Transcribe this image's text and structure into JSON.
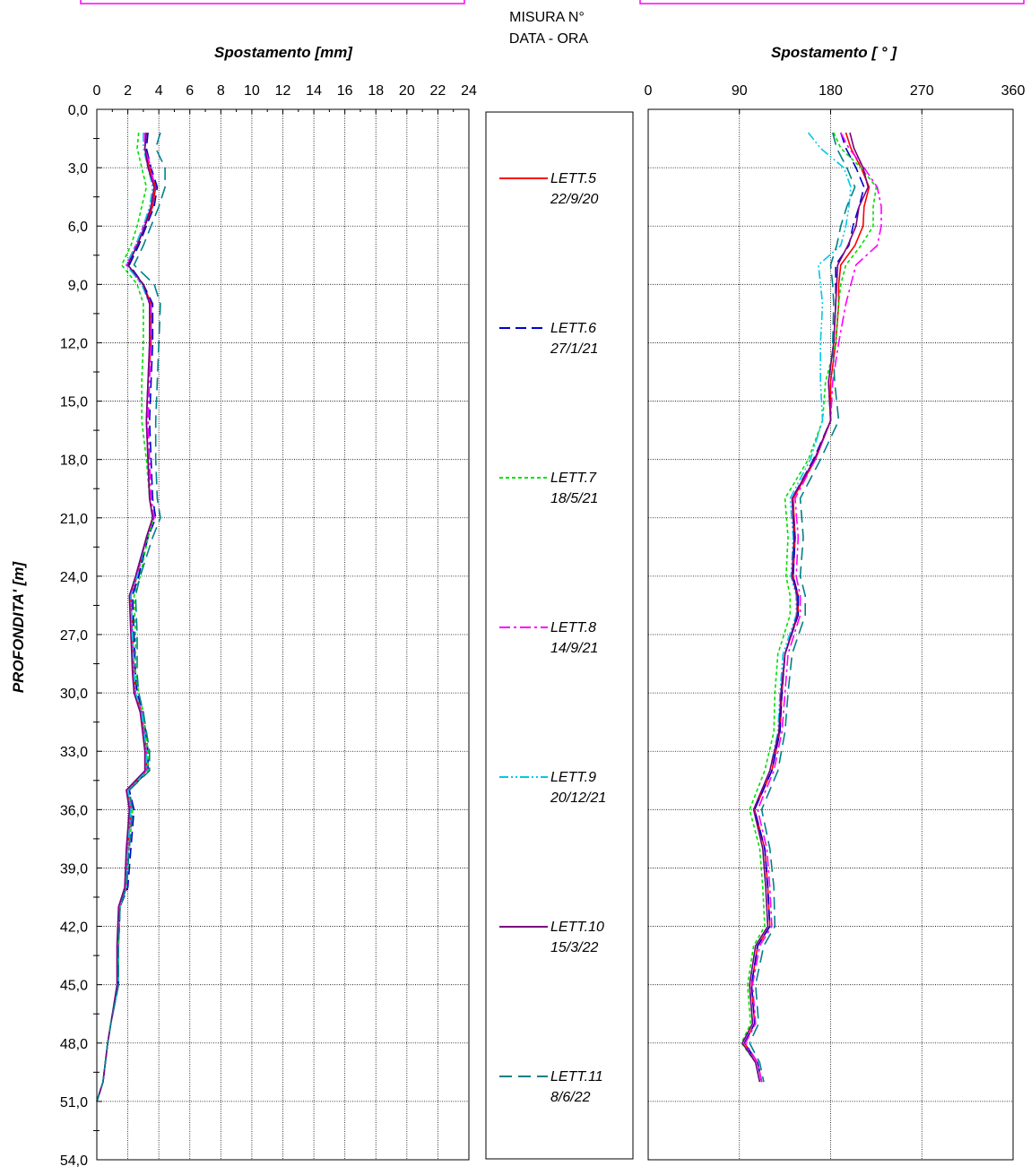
{
  "header": {
    "measure_label": "MISURA N°",
    "date_label": "DATA - ORA"
  },
  "chart_data": [
    {
      "type": "line",
      "title": "",
      "xlabel": "Spostamento [mm]",
      "ylabel": "PROFONDITA' [m]",
      "xlim": [
        0,
        24
      ],
      "ylim": [
        0,
        54
      ],
      "y_inverted": true,
      "xticks": [
        "0",
        "2",
        "4",
        "6",
        "8",
        "10",
        "12",
        "14",
        "16",
        "18",
        "20",
        "22",
        "24"
      ],
      "yticks": [
        "0,0",
        "3,0",
        "6,0",
        "9,0",
        "12,0",
        "15,0",
        "18,0",
        "21,0",
        "24,0",
        "27,0",
        "30,0",
        "33,0",
        "36,0",
        "39,0",
        "42,0",
        "45,0",
        "48,0",
        "51,0",
        "54,0"
      ],
      "grid": true,
      "depth": [
        1.2,
        2,
        3,
        4,
        5,
        6,
        7,
        8,
        9,
        10,
        12,
        14,
        16,
        18,
        20,
        21,
        22,
        24,
        25,
        27,
        29,
        30,
        31,
        33,
        34,
        35,
        36,
        38,
        40,
        41,
        43,
        45,
        47,
        48,
        50,
        51
      ],
      "series": [
        {
          "name": "LETT.5",
          "values": [
            3.2,
            3.1,
            3.4,
            3.8,
            3.6,
            3.1,
            2.6,
            2.0,
            3.0,
            3.5,
            3.5,
            3.3,
            3.2,
            3.3,
            3.4,
            3.6,
            3.2,
            2.6,
            2.2,
            2.3,
            2.4,
            2.5,
            2.9,
            3.2,
            3.2,
            2.0,
            2.2,
            2.0,
            1.9,
            1.5,
            1.4,
            1.4,
            0.9,
            0.7,
            0.4,
            0.0
          ]
        },
        {
          "name": "LETT.6",
          "values": [
            3.3,
            3.2,
            3.5,
            3.9,
            3.7,
            3.2,
            2.7,
            2.1,
            3.0,
            3.6,
            3.6,
            3.5,
            3.4,
            3.5,
            3.6,
            3.8,
            3.3,
            2.7,
            2.3,
            2.4,
            2.5,
            2.6,
            3.0,
            3.3,
            3.3,
            2.1,
            2.4,
            2.2,
            2.0,
            1.5,
            1.4,
            1.4,
            0.9,
            0.7,
            0.4,
            0.0
          ]
        },
        {
          "name": "LETT.7",
          "values": [
            2.7,
            2.6,
            2.9,
            3.2,
            2.9,
            2.6,
            2.2,
            1.6,
            2.6,
            3.0,
            3.0,
            2.9,
            2.9,
            3.2,
            3.4,
            3.7,
            3.3,
            2.8,
            2.4,
            2.5,
            2.5,
            2.7,
            3.0,
            3.3,
            3.3,
            2.0,
            2.3,
            2.1,
            1.9,
            1.5,
            1.4,
            1.4,
            0.9,
            0.7,
            0.4,
            0.0
          ]
        },
        {
          "name": "LETT.8",
          "values": [
            3.1,
            3.1,
            3.5,
            3.7,
            3.5,
            3.0,
            2.5,
            1.9,
            2.9,
            3.5,
            3.5,
            3.4,
            3.3,
            3.4,
            3.5,
            3.7,
            3.2,
            2.6,
            2.2,
            2.3,
            2.4,
            2.5,
            2.9,
            3.2,
            3.2,
            2.0,
            2.2,
            2.0,
            1.9,
            1.5,
            1.4,
            1.4,
            0.9,
            0.7,
            0.4,
            0.0
          ]
        },
        {
          "name": "LETT.9",
          "values": [
            3.0,
            3.0,
            3.3,
            3.6,
            3.4,
            3.0,
            2.5,
            1.9,
            2.9,
            3.4,
            3.4,
            3.3,
            3.2,
            3.3,
            3.4,
            3.6,
            3.2,
            2.6,
            2.2,
            2.3,
            2.4,
            2.5,
            2.9,
            3.2,
            3.2,
            2.0,
            2.2,
            2.0,
            1.9,
            1.5,
            1.4,
            1.4,
            0.9,
            0.7,
            0.4,
            0.0
          ]
        },
        {
          "name": "LETT.10",
          "values": [
            3.2,
            3.1,
            3.3,
            3.7,
            3.5,
            3.1,
            2.6,
            2.0,
            3.0,
            3.4,
            3.4,
            3.3,
            3.2,
            3.3,
            3.4,
            3.6,
            3.2,
            2.5,
            2.1,
            2.2,
            2.3,
            2.4,
            2.8,
            3.1,
            3.1,
            1.9,
            2.1,
            1.9,
            1.8,
            1.4,
            1.3,
            1.3,
            0.9,
            0.7,
            0.4,
            0.0
          ]
        },
        {
          "name": "LETT.11",
          "values": [
            4.1,
            3.8,
            4.4,
            4.4,
            4.0,
            3.5,
            3.0,
            2.4,
            3.7,
            4.1,
            4.0,
            3.9,
            3.8,
            3.8,
            3.9,
            4.1,
            3.6,
            2.8,
            2.5,
            2.6,
            2.6,
            2.7,
            3.0,
            3.4,
            3.4,
            2.1,
            2.3,
            2.1,
            1.9,
            1.5,
            1.4,
            1.4,
            0.9,
            0.7,
            0.4,
            0.0
          ]
        }
      ]
    },
    {
      "type": "line",
      "title": "",
      "xlabel": "Spostamento [ ° ]",
      "ylabel": "",
      "xlim": [
        0,
        360
      ],
      "ylim": [
        0,
        54
      ],
      "y_inverted": true,
      "xticks": [
        "0",
        "90",
        "180",
        "270",
        "360"
      ],
      "grid": true,
      "depth": [
        1.2,
        2,
        3,
        4,
        5,
        6,
        7,
        8,
        9,
        10,
        12,
        14,
        16,
        18,
        20,
        22,
        24,
        25,
        26,
        28,
        30,
        32,
        34,
        36,
        38,
        40,
        42,
        43,
        45,
        47,
        48,
        49,
        50
      ],
      "series": [
        {
          "name": "LETT.5",
          "values": [
            195,
            200,
            210,
            218,
            213,
            212,
            204,
            190,
            188,
            188,
            185,
            180,
            180,
            165,
            143,
            145,
            143,
            148,
            148,
            135,
            132,
            130,
            122,
            105,
            115,
            118,
            120,
            108,
            102,
            105,
            95,
            108,
            112
          ]
        },
        {
          "name": "LETT.6",
          "values": [
            190,
            195,
            205,
            213,
            208,
            202,
            198,
            185,
            185,
            185,
            183,
            178,
            180,
            163,
            142,
            145,
            143,
            148,
            148,
            135,
            132,
            130,
            122,
            105,
            115,
            118,
            120,
            108,
            102,
            105,
            95,
            108,
            112
          ]
        },
        {
          "name": "LETT.7",
          "values": [
            183,
            190,
            210,
            225,
            222,
            222,
            210,
            195,
            190,
            188,
            185,
            175,
            172,
            158,
            135,
            138,
            136,
            140,
            140,
            128,
            125,
            124,
            115,
            100,
            110,
            113,
            115,
            104,
            98,
            101,
            92,
            106,
            110
          ]
        },
        {
          "name": "LETT.8",
          "values": [
            190,
            198,
            213,
            226,
            230,
            230,
            226,
            205,
            200,
            195,
            188,
            182,
            180,
            165,
            145,
            148,
            146,
            150,
            150,
            138,
            135,
            132,
            124,
            108,
            117,
            120,
            122,
            110,
            103,
            106,
            96,
            108,
            112
          ]
        },
        {
          "name": "LETT.9",
          "values": [
            158,
            170,
            193,
            200,
            198,
            195,
            190,
            168,
            170,
            172,
            170,
            170,
            172,
            160,
            140,
            143,
            141,
            146,
            146,
            133,
            130,
            128,
            120,
            104,
            113,
            116,
            118,
            106,
            100,
            103,
            93,
            106,
            110
          ]
        },
        {
          "name": "LETT.10",
          "values": [
            199,
            203,
            212,
            217,
            208,
            205,
            197,
            187,
            186,
            185,
            183,
            178,
            180,
            164,
            142,
            144,
            142,
            147,
            147,
            135,
            131,
            129,
            120,
            104,
            113,
            116,
            118,
            106,
            100,
            103,
            93,
            106,
            110
          ]
        },
        {
          "name": "LETT.11",
          "values": [
            182,
            186,
            196,
            204,
            196,
            190,
            186,
            180,
            182,
            183,
            182,
            184,
            188,
            170,
            150,
            153,
            150,
            155,
            155,
            142,
            138,
            135,
            128,
            112,
            120,
            124,
            125,
            114,
            106,
            109,
            100,
            110,
            114
          ]
        }
      ]
    }
  ],
  "legend": [
    {
      "name": "LETT.5",
      "date": "22/9/20",
      "color": "#ff0000",
      "dash": ""
    },
    {
      "name": "LETT.6",
      "date": "27/1/21",
      "color": "#0000cc",
      "dash": "12 6"
    },
    {
      "name": "LETT.7",
      "date": "18/5/21",
      "color": "#00e000",
      "dash": "4 3"
    },
    {
      "name": "LETT.8",
      "date": "14/9/21",
      "color": "#ff00ff",
      "dash": "12 4 3 4"
    },
    {
      "name": "LETT.9",
      "date": "20/12/21",
      "color": "#00c8e8",
      "dash": "10 3 2 3 2 3"
    },
    {
      "name": "LETT.10",
      "date": "15/3/22",
      "color": "#7a0080",
      "dash": ""
    },
    {
      "name": "LETT.11",
      "date": "8/6/22",
      "color": "#00808a",
      "dash": "14 7"
    }
  ]
}
